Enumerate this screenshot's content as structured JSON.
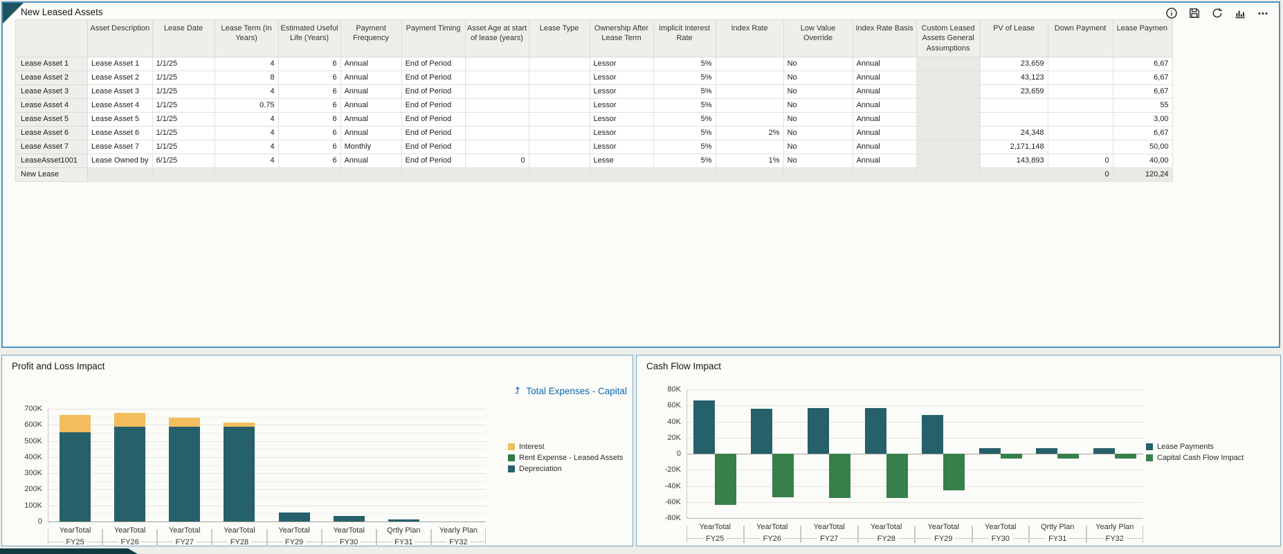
{
  "colors": {
    "accent_border": "#4A94C4",
    "link": "#0B6BB4",
    "interest": "#F2BD5D",
    "rent_expense": "#2E7D46",
    "depreciation": "#26606A",
    "lease_payments": "#26606A",
    "capital_cash_flow": "#377F4B",
    "corner_fold": "#1C5560",
    "bottom_bar": "#123A42"
  },
  "top_panel": {
    "title": "New Leased Assets",
    "toolbar": [
      "info-icon",
      "save-icon",
      "refresh-icon",
      "chart-icon",
      "more-icon"
    ]
  },
  "table": {
    "columns": [
      "",
      "Asset Description",
      "Lease Date",
      "Lease Term (In Years)",
      "Estimated Useful Life (Years)",
      "Payment Frequency",
      "Payment Timing",
      "Asset Age at start of lease (years)",
      "Lease Type",
      "Ownership After Lease Term",
      "Implicit Interest Rate",
      "Index Rate",
      "Low Value Override",
      "Index Rate Basis",
      "Custom Leased Assets General Assumptions",
      "PV of Lease",
      "Down Payment",
      "Lease Paymen"
    ],
    "rows": [
      {
        "header": "Lease Asset 1",
        "cells": [
          "Lease Asset 1",
          "1/1/25",
          "4",
          "6",
          "Annual",
          "End of Period",
          "",
          "",
          "Lessor",
          "5%",
          "",
          "No",
          "Annual",
          "",
          "23,659",
          "",
          "6,67"
        ]
      },
      {
        "header": "Lease Asset 2",
        "cells": [
          "Lease Asset 2",
          "1/1/25",
          "8",
          "6",
          "Annual",
          "End of Period",
          "",
          "",
          "Lessor",
          "5%",
          "",
          "No",
          "Annual",
          "",
          "43,123",
          "",
          "6,67"
        ]
      },
      {
        "header": "Lease Asset 3",
        "cells": [
          "Lease Asset 3",
          "1/1/25",
          "4",
          "6",
          "Annual",
          "End of Period",
          "",
          "",
          "Lessor",
          "5%",
          "",
          "No",
          "Annual",
          "",
          "23,659",
          "",
          "6,67"
        ]
      },
      {
        "header": "Lease Asset 4",
        "cells": [
          "Lease Asset 4",
          "1/1/25",
          "0.75",
          "6",
          "Annual",
          "End of Period",
          "",
          "",
          "Lessor",
          "5%",
          "",
          "No",
          "Annual",
          "",
          "",
          "",
          "55"
        ]
      },
      {
        "header": "Lease Asset 5",
        "cells": [
          "Lease Asset 5",
          "1/1/25",
          "4",
          "6",
          "Annual",
          "End of Period",
          "",
          "",
          "Lessor",
          "5%",
          "",
          "No",
          "Annual",
          "",
          "",
          "",
          "3,00"
        ]
      },
      {
        "header": "Lease Asset 6",
        "cells": [
          "Lease Asset 6",
          "1/1/25",
          "4",
          "6",
          "Annual",
          "End of Period",
          "",
          "",
          "Lessor",
          "5%",
          "2%",
          "No",
          "Annual",
          "",
          "24,348",
          "",
          "6,67"
        ]
      },
      {
        "header": "Lease Asset 7",
        "cells": [
          "Lease Asset 7",
          "1/1/25",
          "4",
          "6",
          "Monthly",
          "End of Period",
          "",
          "",
          "Lessor",
          "5%",
          "",
          "No",
          "Annual",
          "",
          "2,171,148",
          "",
          "50,00"
        ]
      },
      {
        "header": "LeaseAsset1001",
        "cells": [
          "Lease Owned by",
          "6/1/25",
          "4",
          "6",
          "Annual",
          "End of Period",
          "0",
          "",
          "Lesse",
          "5%",
          "1%",
          "No",
          "Annual",
          "",
          "143,893",
          "0",
          "40,00"
        ]
      },
      {
        "header": "New Lease",
        "readonly": true,
        "cells": [
          "",
          "",
          "",
          "",
          "",
          "",
          "",
          "",
          "",
          "",
          "",
          "",
          "",
          "",
          "",
          "0",
          "120,24"
        ]
      }
    ]
  },
  "pnl_panel": {
    "title": "Profit and Loss Impact",
    "link_label": "Total Expenses - Capital"
  },
  "cf_panel": {
    "title": "Cash Flow Impact"
  },
  "chart_data": [
    {
      "type": "bar",
      "stacked": true,
      "title": "Profit and Loss Impact",
      "categories": [
        "YearTotal FY25",
        "YearTotal FY26",
        "YearTotal FY27",
        "YearTotal FY28",
        "YearTotal FY29",
        "YearTotal FY30",
        "Qrtly Plan FY31",
        "Yearly Plan FY32"
      ],
      "series": [
        {
          "name": "Interest",
          "color": "#F2BD5D",
          "values": [
            105000,
            85000,
            55000,
            25000,
            0,
            0,
            0,
            0
          ]
        },
        {
          "name": "Rent Expense - Leased Assets",
          "color": "#2E7D46",
          "values": [
            0,
            0,
            0,
            0,
            0,
            0,
            0,
            0
          ]
        },
        {
          "name": "Depreciation",
          "color": "#26606A",
          "values": [
            555000,
            590000,
            590000,
            590000,
            55000,
            35000,
            15000,
            0
          ]
        }
      ],
      "xlabel": "",
      "ylabel": "",
      "ylim": [
        0,
        700000
      ],
      "ytick_step": 100000,
      "minor_step": 50000,
      "legend_position": "right",
      "grid": true
    },
    {
      "type": "bar",
      "stacked": false,
      "title": "Cash Flow Impact",
      "categories": [
        "YearTotal FY25",
        "YearTotal FY26",
        "YearTotal FY27",
        "YearTotal FY28",
        "YearTotal FY29",
        "YearTotal FY30",
        "Qrtly Plan FY31",
        "Yearly Plan FY32"
      ],
      "series": [
        {
          "name": "Lease Payments",
          "color": "#26606A",
          "values": [
            66000,
            56000,
            57000,
            57000,
            48000,
            7000,
            7000,
            7000
          ]
        },
        {
          "name": "Capital Cash Flow Impact",
          "color": "#377F4B",
          "values": [
            -64000,
            -54000,
            -55000,
            -55000,
            -46000,
            -6000,
            -6000,
            -6000
          ]
        }
      ],
      "xlabel": "",
      "ylabel": "",
      "ylim": [
        -80000,
        80000
      ],
      "ytick_step": 20000,
      "legend_position": "right",
      "grid": true
    }
  ]
}
